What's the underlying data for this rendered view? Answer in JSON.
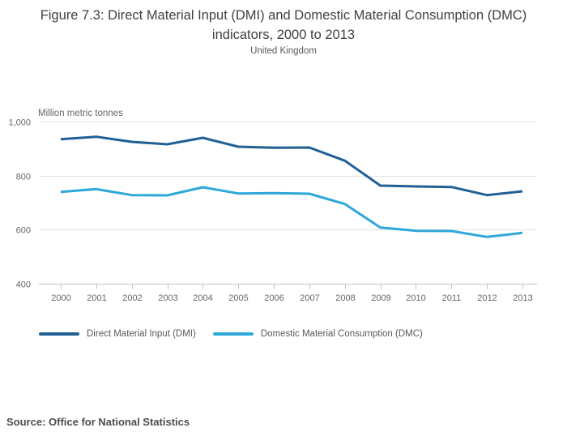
{
  "colors": {
    "dmi_line": "#206095",
    "dmc_line": "#2da8d8",
    "gridline": "#e3e3e3",
    "axis_line": "#c4c4c4",
    "tick_label": "#666666",
    "title_text": "#414042",
    "subtitle_text": "#595959",
    "legend_text": "#595959",
    "source_text": "#4d4d4d"
  },
  "chart_data": {
    "type": "line",
    "title": "Figure 7.3: Direct Material Input (DMI) and Domestic Material Consumption (DMC) indicators, 2000 to 2013",
    "subtitle": "United Kingdom",
    "ylabel": "Million metric tonnes",
    "xlabel": "",
    "source": "Source: Office for National Statistics",
    "x": [
      2000,
      2001,
      2002,
      2003,
      2004,
      2005,
      2006,
      2007,
      2008,
      2009,
      2010,
      2011,
      2012,
      2013
    ],
    "ylim": [
      400,
      1000
    ],
    "yticks": [
      400,
      600,
      800,
      1000
    ],
    "grid": true,
    "legend_position": "bottom",
    "series": [
      {
        "name": "Direct Material Input (DMI)",
        "color": "#206095",
        "values": [
          935,
          944,
          925,
          916,
          940,
          907,
          903,
          904,
          855,
          763,
          760,
          758,
          728,
          742
        ]
      },
      {
        "name": "Domestic Material Consumption (DMC)",
        "color": "#2da8d8",
        "values": [
          740,
          750,
          728,
          727,
          757,
          734,
          735,
          733,
          695,
          608,
          596,
          595,
          573,
          588
        ]
      }
    ]
  }
}
